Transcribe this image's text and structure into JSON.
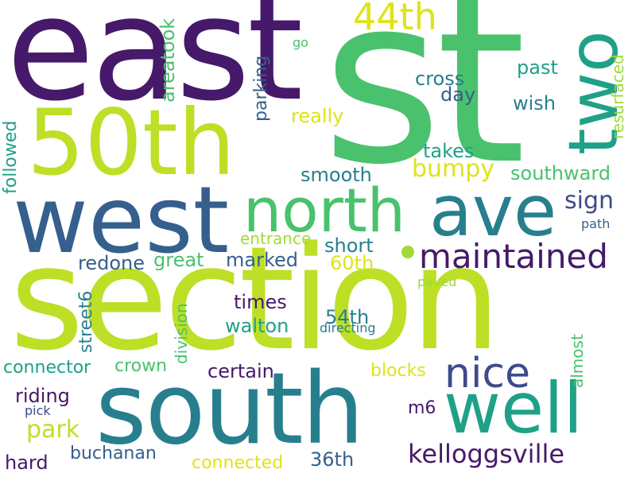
{
  "palette": {
    "dark_purple": "#46196a",
    "indigo": "#3e4a89",
    "slate_blue": "#355f8d",
    "teal": "#277f8e",
    "teal_green": "#1fa187",
    "green": "#4ac16d",
    "lime": "#a0da39",
    "yellow_green": "#bddf26",
    "yellow": "#dfe318"
  },
  "words": [
    {
      "id": "st",
      "text": "st"
    },
    {
      "id": "east",
      "text": "east"
    },
    {
      "id": "section",
      "text": "section"
    },
    {
      "id": "50th",
      "text": "50th"
    },
    {
      "id": "west",
      "text": "west"
    },
    {
      "id": "south",
      "text": "south"
    },
    {
      "id": "north",
      "text": "north"
    },
    {
      "id": "ave",
      "text": "ave"
    },
    {
      "id": "well",
      "text": "well"
    },
    {
      "id": "two",
      "text": "two"
    },
    {
      "id": "maintained",
      "text": "maintained"
    },
    {
      "id": "nice",
      "text": "nice"
    },
    {
      "id": "44th",
      "text": "44th"
    },
    {
      "id": "kelloggsville",
      "text": "kelloggsville"
    },
    {
      "id": "bumpy",
      "text": "bumpy"
    },
    {
      "id": "sign",
      "text": "sign"
    },
    {
      "id": "park",
      "text": "park"
    },
    {
      "id": "cross",
      "text": "cross"
    },
    {
      "id": "past",
      "text": "past"
    },
    {
      "id": "day",
      "text": "day"
    },
    {
      "id": "wish",
      "text": "wish"
    },
    {
      "id": "really",
      "text": "really"
    },
    {
      "id": "takes",
      "text": "takes"
    },
    {
      "id": "southward",
      "text": "southward"
    },
    {
      "id": "smooth",
      "text": "smooth"
    },
    {
      "id": "entrance",
      "text": "entrance"
    },
    {
      "id": "short",
      "text": "short"
    },
    {
      "id": "path",
      "text": "path"
    },
    {
      "id": "great",
      "text": "great"
    },
    {
      "id": "marked",
      "text": "marked"
    },
    {
      "id": "redone",
      "text": "redone"
    },
    {
      "id": "60th",
      "text": "60th"
    },
    {
      "id": "times",
      "text": "times"
    },
    {
      "id": "54th",
      "text": "54th"
    },
    {
      "id": "walton",
      "text": "walton"
    },
    {
      "id": "directing",
      "text": "directing"
    },
    {
      "id": "paved",
      "text": "paved"
    },
    {
      "id": "connector",
      "text": "connector"
    },
    {
      "id": "crown",
      "text": "crown"
    },
    {
      "id": "certain",
      "text": "certain"
    },
    {
      "id": "blocks",
      "text": "blocks"
    },
    {
      "id": "riding",
      "text": "riding"
    },
    {
      "id": "pick",
      "text": "pick"
    },
    {
      "id": "m6",
      "text": "m6"
    },
    {
      "id": "hard",
      "text": "hard"
    },
    {
      "id": "buchanan",
      "text": "buchanan"
    },
    {
      "id": "connected",
      "text": "connected"
    },
    {
      "id": "36th",
      "text": "36th"
    },
    {
      "id": "go",
      "text": "go"
    },
    {
      "id": "areatook",
      "text": "areatook"
    },
    {
      "id": "parking",
      "text": "parking"
    },
    {
      "id": "resurfaced",
      "text": "resurfaced"
    },
    {
      "id": "followed",
      "text": "followed"
    },
    {
      "id": "street6",
      "text": "street6"
    },
    {
      "id": "division",
      "text": "division"
    },
    {
      "id": "almost",
      "text": "almost"
    }
  ]
}
